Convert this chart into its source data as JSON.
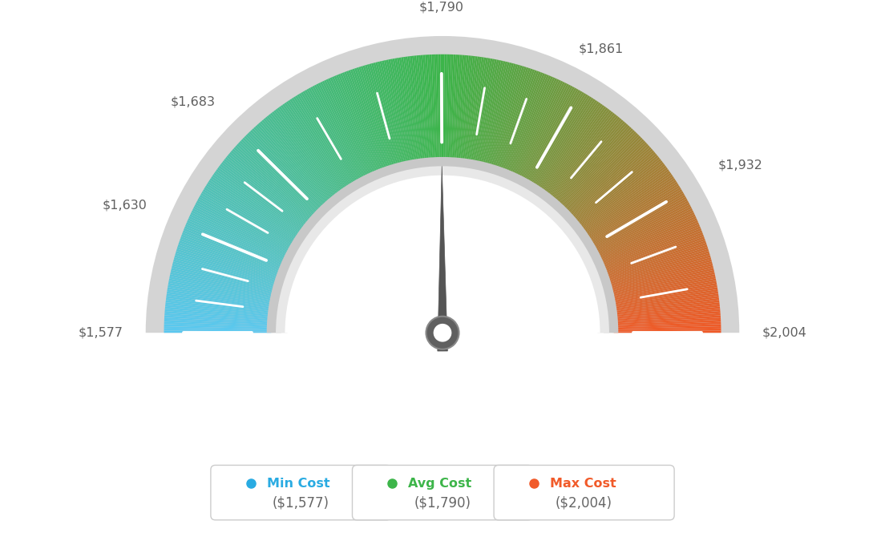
{
  "min_val": 1577,
  "avg_val": 1790,
  "max_val": 2004,
  "tick_labels": [
    "$1,577",
    "$1,630",
    "$1,683",
    "$1,790",
    "$1,861",
    "$1,932",
    "$2,004"
  ],
  "tick_values": [
    1577,
    1630,
    1683,
    1790,
    1861,
    1932,
    2004
  ],
  "legend_labels": [
    "Min Cost",
    "Avg Cost",
    "Max Cost"
  ],
  "legend_values": [
    "($1,577)",
    "($1,790)",
    "($2,004)"
  ],
  "legend_dot_colors": [
    "#29abe2",
    "#3db54a",
    "#f15a29"
  ],
  "legend_text_colors": [
    "#29abe2",
    "#3db54a",
    "#f15a29"
  ],
  "color_left": "#5bc8f0",
  "color_center": "#3cb54a",
  "color_right": "#f05a28",
  "needle_color": "#555555",
  "background_color": "#ffffff",
  "outer_gray": "#c8c8c8",
  "inner_gray_dark": "#a0a0a0",
  "inner_gray_light": "#e0e0e0"
}
